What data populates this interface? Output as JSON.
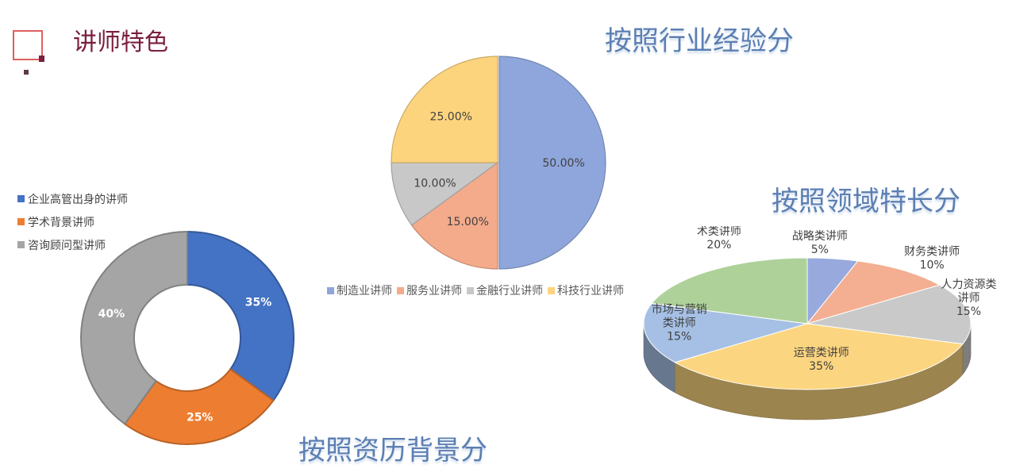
{
  "page": {
    "title": "讲师特色"
  },
  "charts": {
    "industry_title": "按照行业经验分",
    "domain_title": "按照领域特长分",
    "background_title": "按照资历背景分"
  },
  "chart_data": [
    {
      "type": "pie",
      "title": "按照行业经验分",
      "categories": [
        "制造业讲师",
        "服务业讲师",
        "金融行业讲师",
        "科技行业讲师"
      ],
      "values": [
        50,
        15,
        10,
        25
      ],
      "labels": [
        "50.00%",
        "15.00%",
        "10.00%",
        "25.00%"
      ],
      "colors": [
        "#8fa6dc",
        "#f4ab8b",
        "#c8c8c8",
        "#fdd47e"
      ],
      "legend": "bottom"
    },
    {
      "type": "pie",
      "title": "按照领域特长分",
      "style": "3d",
      "categories": [
        "战略类讲师",
        "财务类讲师",
        "人力资源类讲师",
        "运营类讲师",
        "市场与营销类讲师",
        "数字化与技术类讲师"
      ],
      "values": [
        5,
        10,
        15,
        35,
        15,
        20
      ],
      "label_names": [
        "战略类讲师",
        "财务类讲师",
        "人力资源类\n讲师",
        "运营类讲师",
        "市场与营销\n类讲师",
        "数字化与技\n术类讲师"
      ],
      "labels": [
        "5%",
        "10%",
        "15%",
        "35%",
        "15%",
        "20%"
      ],
      "colors": [
        "#98a9dd",
        "#f4ae91",
        "#c9c9c9",
        "#fcd580",
        "#a6c0e5",
        "#aed19a"
      ],
      "legend": "none"
    },
    {
      "type": "pie",
      "style": "doughnut",
      "title": "按照资历背景分",
      "categories": [
        "企业高管出身的讲师",
        "学术背景讲师",
        "咨询顾问型讲师"
      ],
      "values": [
        35,
        25,
        40
      ],
      "labels": [
        "35%",
        "25%",
        "40%"
      ],
      "colors": [
        "#4472c4",
        "#ed7d31",
        "#a5a5a5"
      ],
      "legend": "top-left"
    }
  ]
}
